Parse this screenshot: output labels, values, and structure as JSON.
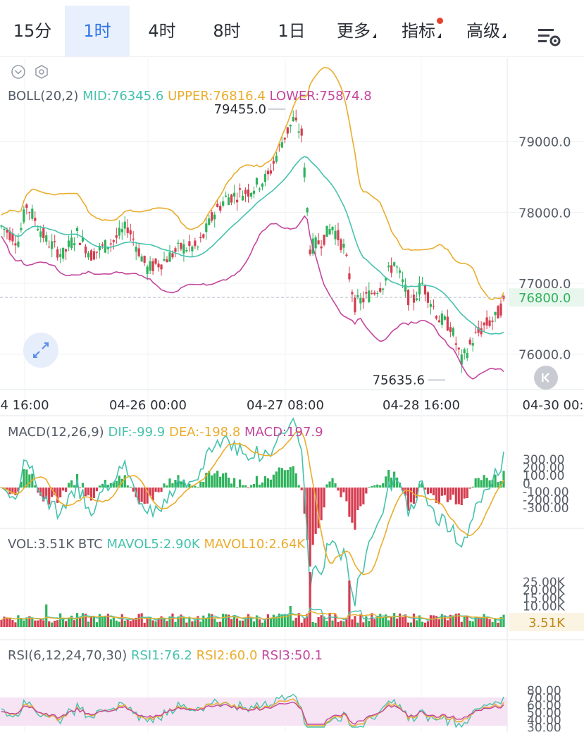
{
  "tabs": [
    {
      "label": "15分",
      "active": false
    },
    {
      "label": "1时",
      "active": true
    },
    {
      "label": "4时",
      "active": false
    },
    {
      "label": "8时",
      "active": false
    },
    {
      "label": "1日",
      "active": false
    },
    {
      "label": "更多",
      "active": false
    },
    {
      "label": "指标",
      "active": false
    },
    {
      "label": "高级",
      "active": false
    }
  ],
  "colors": {
    "up": "#2eb35b",
    "down": "#d63c4f",
    "mid": "#46c2ad",
    "upper": "#e9ad2d",
    "lower": "#c3469e",
    "accent": "#2f74e8"
  },
  "boll": {
    "name": "BOLL(20,2)",
    "mid": "MID:76345.6",
    "upper": "UPPER:76816.4",
    "lower": "LOWER:75874.8"
  },
  "macd": {
    "name": "MACD(12,26,9)",
    "dif": "DIF:-99.9",
    "dea": "DEA:-198.8",
    "macd": "MACD:197.9"
  },
  "vol": {
    "name": "VOL:3.51K BTC",
    "mavol5": "MAVOL5:2.90K",
    "mavol10": "MAVOL10:2.64K",
    "last_label": "3.51K"
  },
  "rsi": {
    "name": "RSI(6,12,24,70,30)",
    "rsi1": "RSI1:76.2",
    "rsi2": "RSI2:60.0",
    "rsi3": "RSI3:50.1"
  },
  "chart_data": [
    {
      "type": "candlestick",
      "price_axis": [
        79000.0,
        78000.0,
        77000.0,
        76000.0
      ],
      "ylim": [
        75500,
        80100
      ],
      "time_axis": [
        "4 16:00",
        "04-26 00:00",
        "04-27 08:00",
        "04-28 16:00",
        "04-30 00:"
      ],
      "max_label": "79455.0",
      "min_label": "75635.6",
      "current_price": "76800.0",
      "max_price": 79455.0,
      "min_price": 75635.6,
      "current_price_value": 76800.0
    },
    {
      "type": "bar",
      "name": "MACD",
      "axis_labels": [
        "300.00",
        "200.00",
        "100.00",
        "0",
        "-100.00",
        "-200.00",
        "-300.00"
      ]
    },
    {
      "type": "bar",
      "name": "VOL",
      "axis_labels": [
        "25.00K",
        "20.00K",
        "15.00K",
        "10.00K"
      ]
    },
    {
      "type": "line",
      "name": "RSI",
      "axis_labels": [
        "80.00",
        "70.00",
        "60.00",
        "50.00",
        "40.00",
        "30.00"
      ]
    }
  ]
}
